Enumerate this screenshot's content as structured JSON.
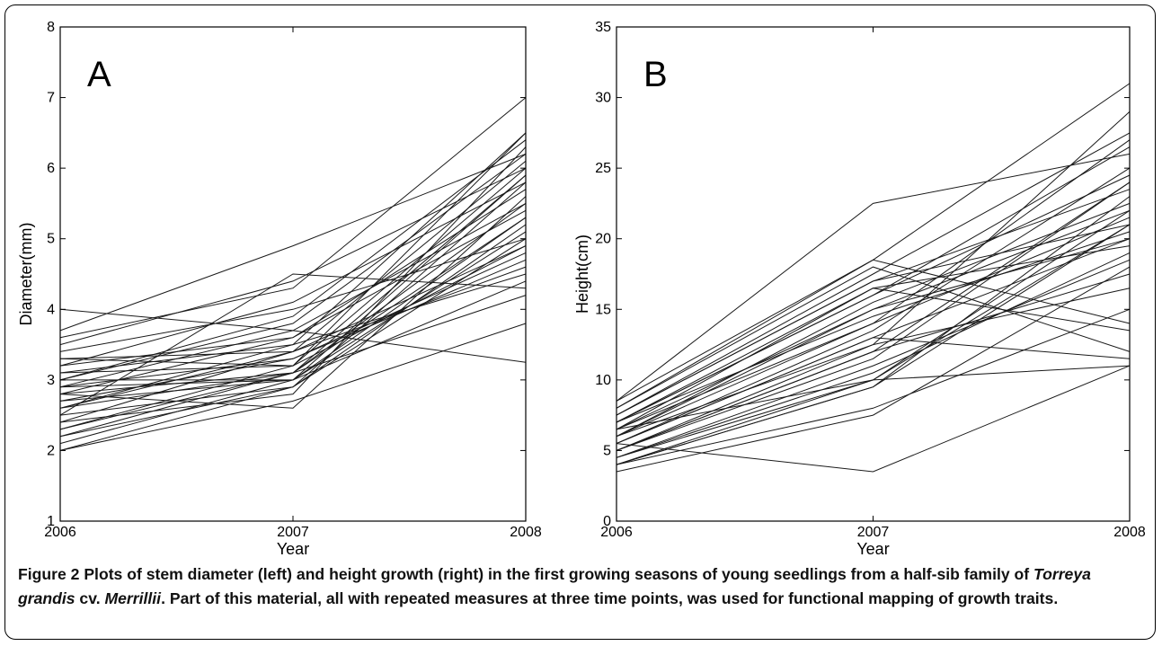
{
  "chart_data": [
    {
      "type": "line",
      "panel_label": "A",
      "xlabel": "Year",
      "ylabel": "Diameter(mm)",
      "x": [
        "2006",
        "2007",
        "2008"
      ],
      "xticks": [
        "2006",
        "2007",
        "2008"
      ],
      "yticks": [
        "1",
        "2",
        "3",
        "4",
        "5",
        "6",
        "7",
        "8"
      ],
      "ylim": [
        1,
        8
      ],
      "grid": false,
      "series": [
        {
          "values": [
            2.0,
            2.9,
            5.0
          ]
        },
        {
          "values": [
            2.1,
            3.0,
            4.4
          ]
        },
        {
          "values": [
            2.2,
            3.1,
            5.5
          ]
        },
        {
          "values": [
            2.3,
            3.2,
            6.0
          ]
        },
        {
          "values": [
            2.4,
            3.4,
            4.6
          ]
        },
        {
          "values": [
            2.5,
            2.9,
            5.2
          ]
        },
        {
          "values": [
            2.6,
            3.5,
            6.5
          ]
        },
        {
          "values": [
            2.7,
            3.3,
            4.8
          ]
        },
        {
          "values": [
            2.8,
            3.6,
            5.7
          ]
        },
        {
          "values": [
            2.9,
            3.0,
            5.3
          ]
        },
        {
          "values": [
            3.0,
            3.8,
            6.2
          ]
        },
        {
          "values": [
            3.1,
            3.2,
            4.9
          ]
        },
        {
          "values": [
            3.2,
            4.1,
            5.8
          ]
        },
        {
          "values": [
            3.3,
            3.4,
            6.1
          ]
        },
        {
          "values": [
            3.4,
            4.0,
            5.0
          ]
        },
        {
          "values": [
            3.6,
            4.3,
            7.0
          ]
        },
        {
          "values": [
            3.7,
            4.9,
            6.2
          ]
        },
        {
          "values": [
            4.0,
            3.7,
            3.25
          ]
        },
        {
          "values": [
            2.0,
            2.7,
            3.8
          ]
        },
        {
          "values": [
            2.5,
            4.5,
            4.3
          ]
        },
        {
          "values": [
            2.8,
            2.6,
            5.6
          ]
        },
        {
          "values": [
            3.0,
            3.9,
            6.4
          ]
        },
        {
          "values": [
            2.6,
            3.1,
            5.9
          ]
        },
        {
          "values": [
            2.9,
            3.3,
            4.7
          ]
        },
        {
          "values": [
            3.2,
            3.6,
            5.4
          ]
        },
        {
          "values": [
            2.4,
            2.8,
            6.3
          ]
        },
        {
          "values": [
            2.7,
            3.0,
            5.1
          ]
        },
        {
          "values": [
            3.1,
            3.5,
            4.5
          ]
        },
        {
          "values": [
            2.2,
            2.9,
            5.8
          ]
        },
        {
          "values": [
            3.5,
            4.4,
            6.0
          ]
        },
        {
          "values": [
            2.3,
            3.1,
            4.2
          ]
        },
        {
          "values": [
            2.9,
            3.7,
            5.5
          ]
        },
        {
          "values": [
            3.3,
            3.2,
            6.5
          ]
        },
        {
          "values": [
            2.6,
            3.4,
            4.9
          ]
        },
        {
          "values": [
            2.8,
            3.1,
            5.3
          ]
        },
        {
          "values": [
            3.0,
            3.0,
            5.9
          ]
        }
      ]
    },
    {
      "type": "line",
      "panel_label": "B",
      "xlabel": "Year",
      "ylabel": "Height(cm)",
      "x": [
        "2006",
        "2007",
        "2008"
      ],
      "xticks": [
        "2006",
        "2007",
        "2008"
      ],
      "yticks": [
        "0",
        "5",
        "10",
        "15",
        "20",
        "25",
        "30",
        "35"
      ],
      "ylim": [
        0,
        35
      ],
      "grid": false,
      "series": [
        {
          "values": [
            3.5,
            7.5,
            18.0
          ]
        },
        {
          "values": [
            4.0,
            9.5,
            21.0
          ]
        },
        {
          "values": [
            4.5,
            10.0,
            11.0
          ]
        },
        {
          "values": [
            5.0,
            12.0,
            24.0
          ]
        },
        {
          "values": [
            5.5,
            13.0,
            20.0
          ]
        },
        {
          "values": [
            6.0,
            14.0,
            27.0
          ]
        },
        {
          "values": [
            6.5,
            15.0,
            22.0
          ]
        },
        {
          "values": [
            7.0,
            16.0,
            26.5
          ]
        },
        {
          "values": [
            7.5,
            17.0,
            21.0
          ]
        },
        {
          "values": [
            8.0,
            18.5,
            31.0
          ]
        },
        {
          "values": [
            8.5,
            22.5,
            26.0
          ]
        },
        {
          "values": [
            5.5,
            3.5,
            11.0
          ]
        },
        {
          "values": [
            4.0,
            8.0,
            15.0
          ]
        },
        {
          "values": [
            6.0,
            12.5,
            29.0
          ]
        },
        {
          "values": [
            5.0,
            11.5,
            24.0
          ]
        },
        {
          "values": [
            7.0,
            14.5,
            20.5
          ]
        },
        {
          "values": [
            6.5,
            16.5,
            13.5
          ]
        },
        {
          "values": [
            4.5,
            10.5,
            19.0
          ]
        },
        {
          "values": [
            5.5,
            13.5,
            25.0
          ]
        },
        {
          "values": [
            6.0,
            15.5,
            22.5
          ]
        },
        {
          "values": [
            7.5,
            17.5,
            27.5
          ]
        },
        {
          "values": [
            8.0,
            18.0,
            12.0
          ]
        },
        {
          "values": [
            4.0,
            9.5,
            23.0
          ]
        },
        {
          "values": [
            5.0,
            12.0,
            17.5
          ]
        },
        {
          "values": [
            6.5,
            14.0,
            21.5
          ]
        },
        {
          "values": [
            7.0,
            16.0,
            24.5
          ]
        },
        {
          "values": [
            5.5,
            13.0,
            11.5
          ]
        },
        {
          "values": [
            6.0,
            15.0,
            20.0
          ]
        },
        {
          "values": [
            4.5,
            11.0,
            18.5
          ]
        },
        {
          "values": [
            7.5,
            17.0,
            23.5
          ]
        },
        {
          "values": [
            8.5,
            18.5,
            14.0
          ]
        },
        {
          "values": [
            5.0,
            12.5,
            16.5
          ]
        },
        {
          "values": [
            6.5,
            10.0,
            22.0
          ]
        },
        {
          "values": [
            4.0,
            10.0,
            21.0
          ]
        },
        {
          "values": [
            7.0,
            16.5,
            19.5
          ]
        }
      ]
    }
  ],
  "caption": {
    "lead": "Figure 2",
    "text_1": " Plots of stem diameter (left) and height growth (right) in the first growing seasons of young seedlings from a half-sib family of ",
    "species": "Torreya grandis",
    "text_2": " cv. ",
    "cultivar": "Merrillii",
    "text_3": ". Part of this material, all with repeated measures at three time points, was used for functional mapping of growth traits."
  }
}
